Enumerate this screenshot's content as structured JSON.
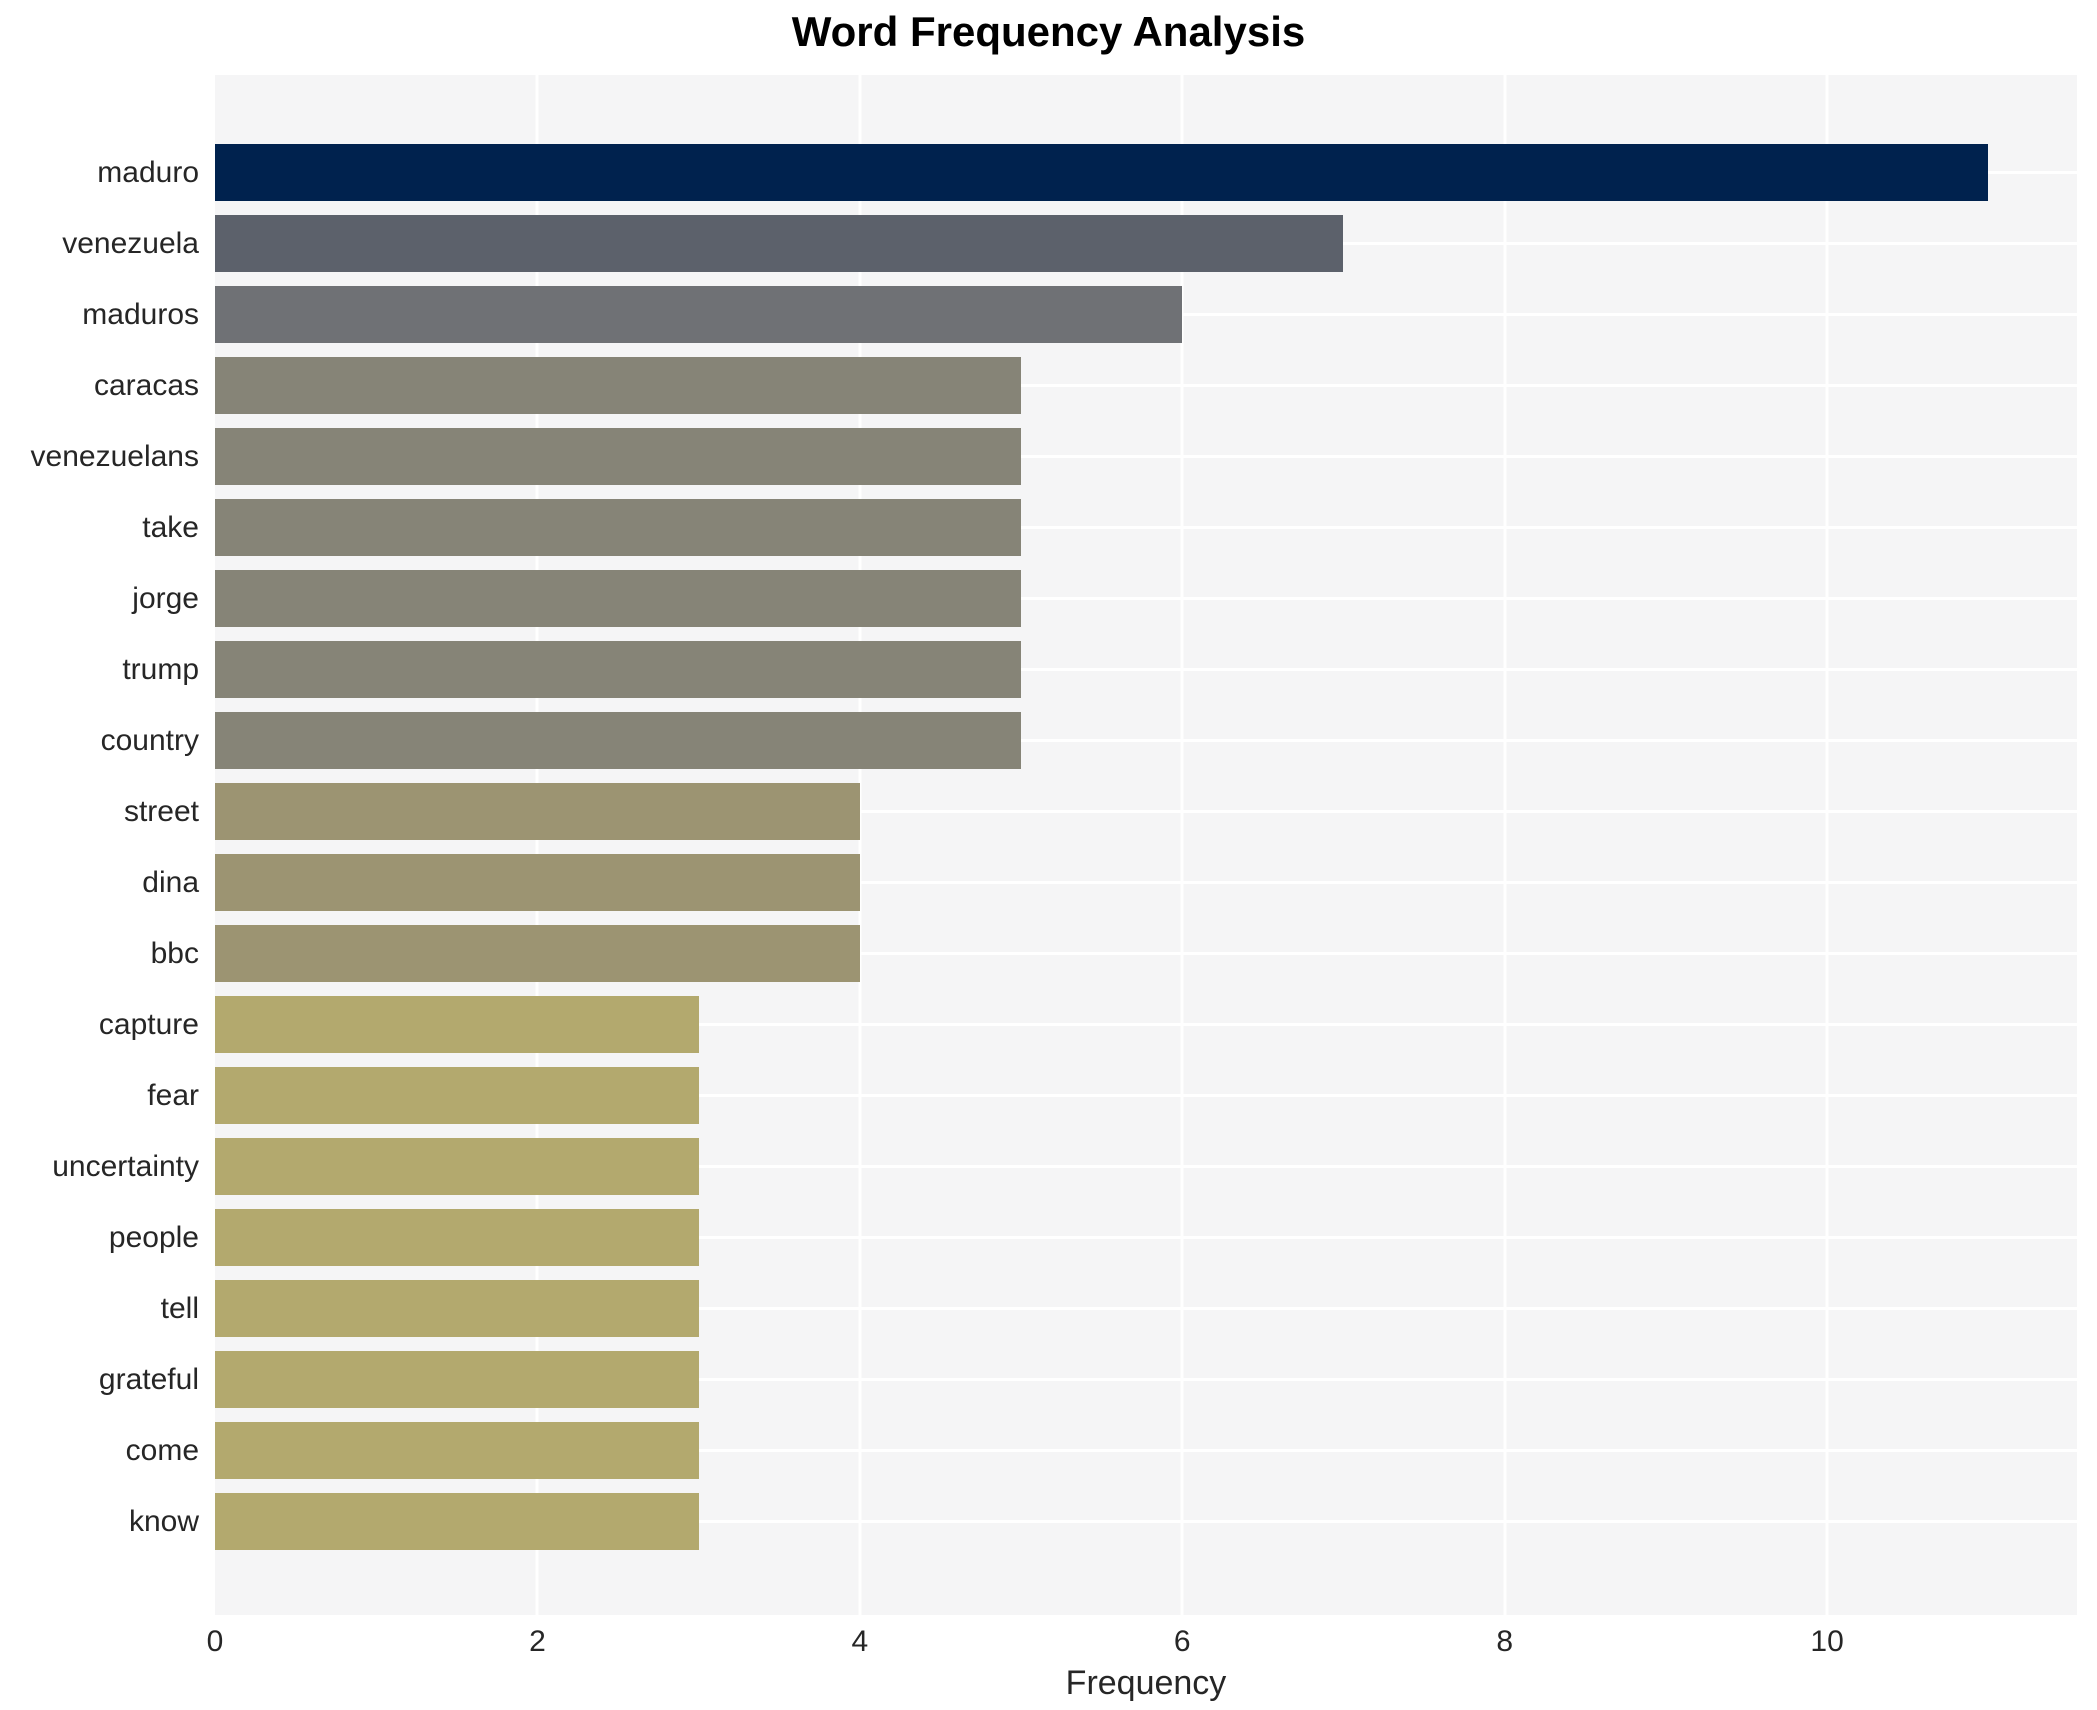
{
  "chart_data": {
    "type": "bar",
    "orientation": "horizontal",
    "title": "Word Frequency Analysis",
    "xlabel": "Frequency",
    "ylabel": "",
    "categories": [
      "maduro",
      "venezuela",
      "maduros",
      "caracas",
      "venezuelans",
      "take",
      "jorge",
      "trump",
      "country",
      "street",
      "dina",
      "bbc",
      "capture",
      "fear",
      "uncertainty",
      "people",
      "tell",
      "grateful",
      "come",
      "know"
    ],
    "values": [
      11,
      7,
      6,
      5,
      5,
      5,
      5,
      5,
      5,
      4,
      4,
      4,
      3,
      3,
      3,
      3,
      3,
      3,
      3,
      3
    ],
    "bar_colors": [
      "#00224e",
      "#5c616b",
      "#6f7175",
      "#868477",
      "#868477",
      "#868477",
      "#868477",
      "#868477",
      "#868477",
      "#9c9472",
      "#9c9472",
      "#9c9472",
      "#b3a96e",
      "#b3a96e",
      "#b3a96e",
      "#b3a96e",
      "#b3a96e",
      "#b3a96e",
      "#b3a96e",
      "#b3a96e"
    ],
    "x_ticks": [
      0,
      2,
      4,
      6,
      8,
      10
    ],
    "xlim": [
      0,
      11.55
    ],
    "grid": true,
    "legend_position": "none",
    "colors": {
      "plot_background": "#f5f5f6",
      "gridline": "#ffffff",
      "text": "#262626",
      "title_text": "#000000"
    }
  }
}
